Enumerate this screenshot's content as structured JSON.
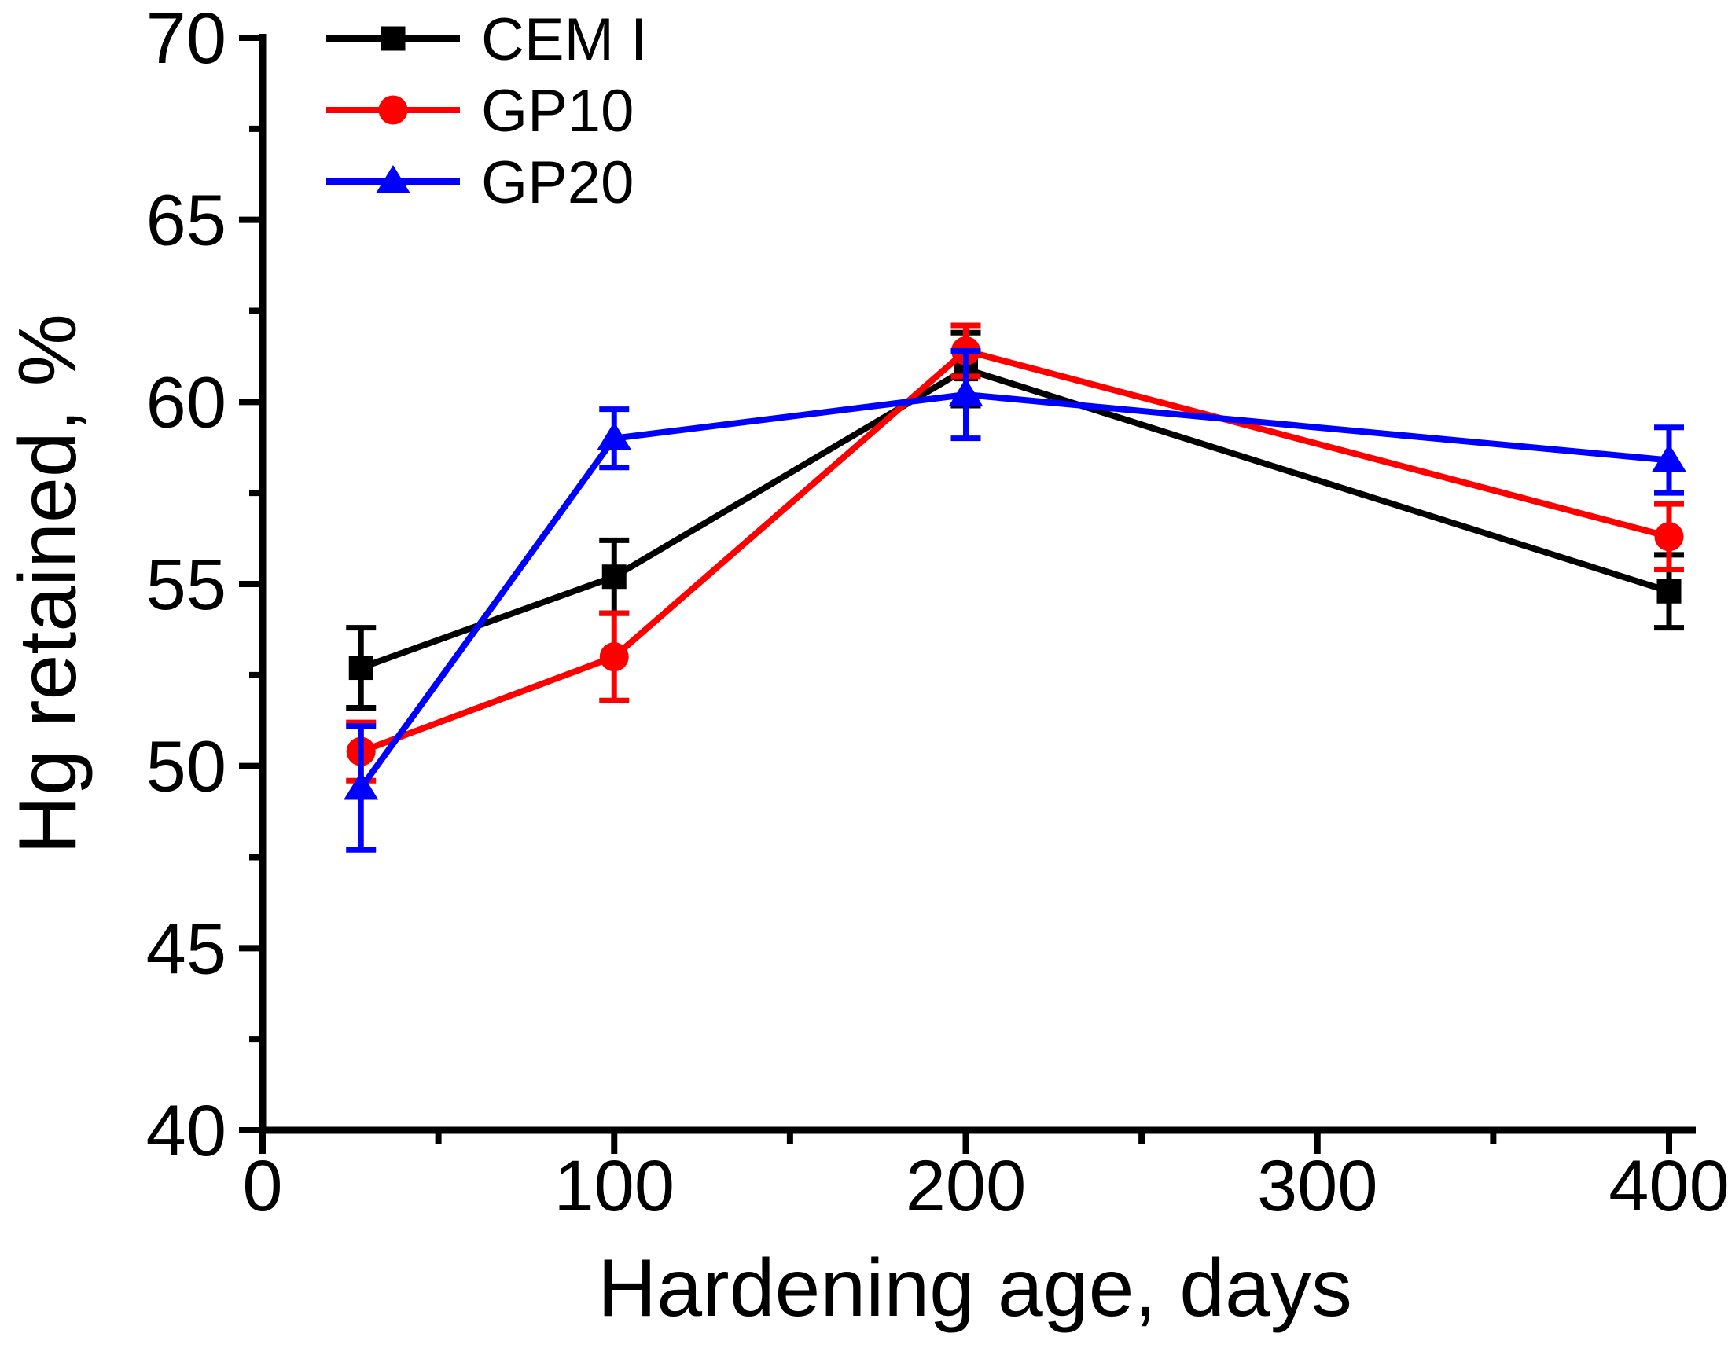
{
  "chart_data": {
    "type": "line",
    "title": "",
    "xlabel": "Hardening age, days",
    "ylabel": "Hg retained, %",
    "xlim": [
      0,
      408
    ],
    "ylim": [
      40,
      70
    ],
    "x_major_ticks": [
      0,
      100,
      200,
      300,
      400
    ],
    "x_minor_ticks": [
      50,
      150,
      250,
      350
    ],
    "y_major_ticks": [
      40,
      45,
      50,
      55,
      60,
      65,
      70
    ],
    "y_minor_ticks": [
      42.5,
      47.5,
      52.5,
      57.5,
      62.5,
      67.5
    ],
    "grid": false,
    "legend_position": "top-left",
    "background_color": "#FFFFFF",
    "axis_color": "#000000",
    "x": [
      28,
      100,
      200,
      400
    ],
    "series": [
      {
        "name": "CEM I",
        "color": "#000000",
        "marker": "square",
        "values": [
          52.7,
          55.2,
          60.9,
          54.8
        ],
        "yerr": [
          1.1,
          1.0,
          1.0,
          1.0
        ]
      },
      {
        "name": "GP10",
        "color": "#FF0000",
        "marker": "circle",
        "values": [
          50.4,
          53.0,
          61.4,
          56.3
        ],
        "yerr": [
          0.8,
          1.2,
          0.7,
          0.9
        ]
      },
      {
        "name": "GP20",
        "color": "#0000FF",
        "marker": "triangle",
        "values": [
          49.4,
          59.0,
          60.2,
          58.4
        ],
        "yerr": [
          1.7,
          0.8,
          1.2,
          0.9
        ]
      }
    ]
  }
}
